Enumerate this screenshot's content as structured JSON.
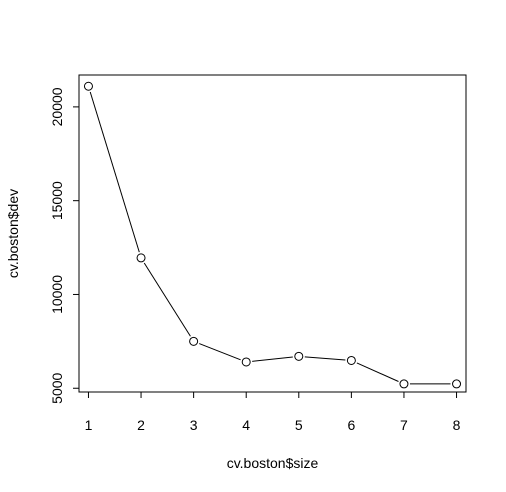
{
  "chart_data": {
    "type": "line",
    "title": "",
    "xlabel": "cv.boston$size",
    "ylabel": "cv.boston$dev",
    "x": [
      1,
      2,
      3,
      4,
      5,
      6,
      7,
      8
    ],
    "y": [
      21100,
      11950,
      7500,
      6400,
      6700,
      6480,
      5230,
      5230
    ],
    "xlim": [
      0.82,
      8.18
    ],
    "ylim": [
      4800,
      21700
    ],
    "xticks": [
      1,
      2,
      3,
      4,
      5,
      6,
      7,
      8
    ],
    "yticks": [
      5000,
      10000,
      15000,
      20000
    ],
    "ytick_labels": [
      "5000",
      "10000",
      "15000",
      "20000"
    ],
    "marker": "open-circle",
    "line_color": "#000000",
    "grid": false,
    "legend": false
  }
}
